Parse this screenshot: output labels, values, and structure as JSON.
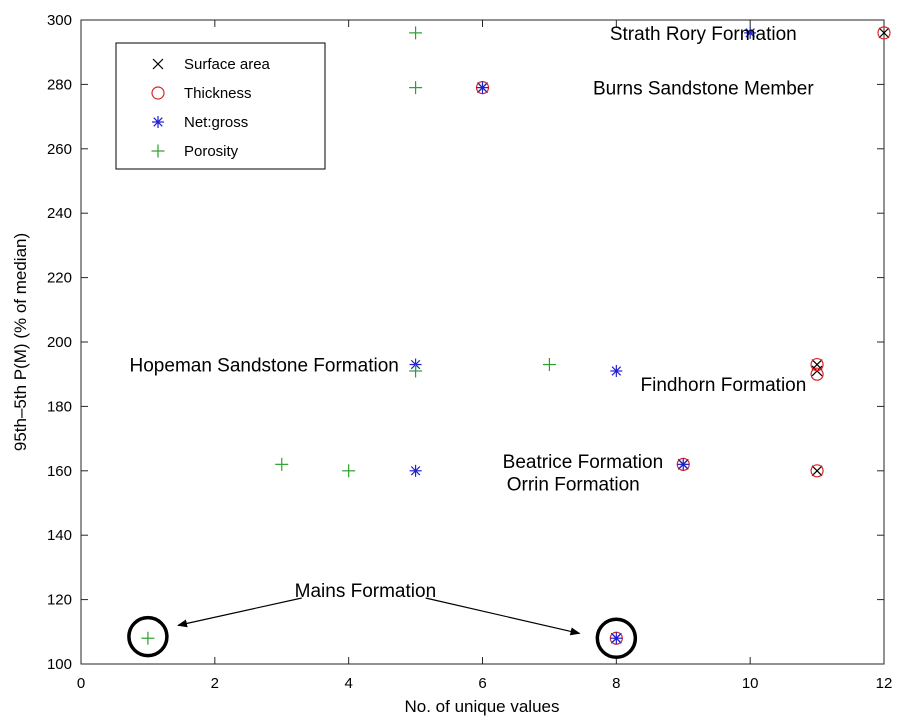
{
  "chart_data": {
    "type": "scatter",
    "xlabel": "No. of unique values",
    "ylabel": "95th–5th P(M) (% of median)",
    "xlim": [
      0,
      12
    ],
    "ylim": [
      100,
      300
    ],
    "xticks": [
      0,
      2,
      4,
      6,
      8,
      10,
      12
    ],
    "yticks": [
      100,
      120,
      140,
      160,
      180,
      200,
      220,
      240,
      260,
      280,
      300
    ],
    "grid": false,
    "legend_position": "top-left",
    "series": [
      {
        "name": "Surface area",
        "marker": "x",
        "color": "#000000",
        "points": [
          [
            12,
            296
          ],
          [
            6,
            279
          ],
          [
            11,
            193
          ],
          [
            11,
            191
          ],
          [
            9,
            162
          ],
          [
            11,
            160
          ],
          [
            8,
            108
          ]
        ]
      },
      {
        "name": "Thickness",
        "marker": "o",
        "color": "#d62728",
        "points": [
          [
            12,
            296
          ],
          [
            6,
            279
          ],
          [
            11,
            193
          ],
          [
            11,
            190
          ],
          [
            9,
            162
          ],
          [
            11,
            160
          ],
          [
            8,
            108
          ]
        ]
      },
      {
        "name": "Net:gross",
        "marker": "*",
        "color": "#1f1fd0",
        "points": [
          [
            10,
            296
          ],
          [
            6,
            279
          ],
          [
            5,
            193
          ],
          [
            8,
            191
          ],
          [
            5,
            160
          ],
          [
            9,
            162
          ],
          [
            8,
            108
          ]
        ]
      },
      {
        "name": "Porosity",
        "marker": "+",
        "color": "#2ca02c",
        "points": [
          [
            5,
            296
          ],
          [
            5,
            279
          ],
          [
            5,
            191
          ],
          [
            7,
            193
          ],
          [
            3,
            162
          ],
          [
            4,
            160
          ],
          [
            1,
            108
          ]
        ]
      }
    ],
    "annotations": [
      {
        "text": "Strath Rory Formation",
        "x": 9.3,
        "y": 296,
        "anchor": "middle"
      },
      {
        "text": "Burns Sandstone Member",
        "x": 9.3,
        "y": 279,
        "anchor": "middle"
      },
      {
        "text": "Hopeman Sandstone Formation",
        "x": 4.75,
        "y": 193,
        "anchor": "end"
      },
      {
        "text": "Findhorn Formation",
        "x": 9.6,
        "y": 187,
        "anchor": "middle"
      },
      {
        "text": "Beatrice Formation",
        "x": 8.7,
        "y": 163,
        "anchor": "end"
      },
      {
        "text": "Orrin Formation",
        "x": 8.35,
        "y": 156,
        "anchor": "end"
      },
      {
        "text": "Mains Formation",
        "x": 4.25,
        "y": 123,
        "anchor": "middle"
      }
    ],
    "arrows": [
      {
        "from": [
          3.3,
          120.5
        ],
        "to": [
          1.45,
          112
        ]
      },
      {
        "from": [
          5.15,
          120.5
        ],
        "to": [
          7.45,
          109.5
        ]
      }
    ],
    "highlight_circles": [
      {
        "x": 1,
        "y": 108.5
      },
      {
        "x": 8,
        "y": 108
      }
    ]
  }
}
